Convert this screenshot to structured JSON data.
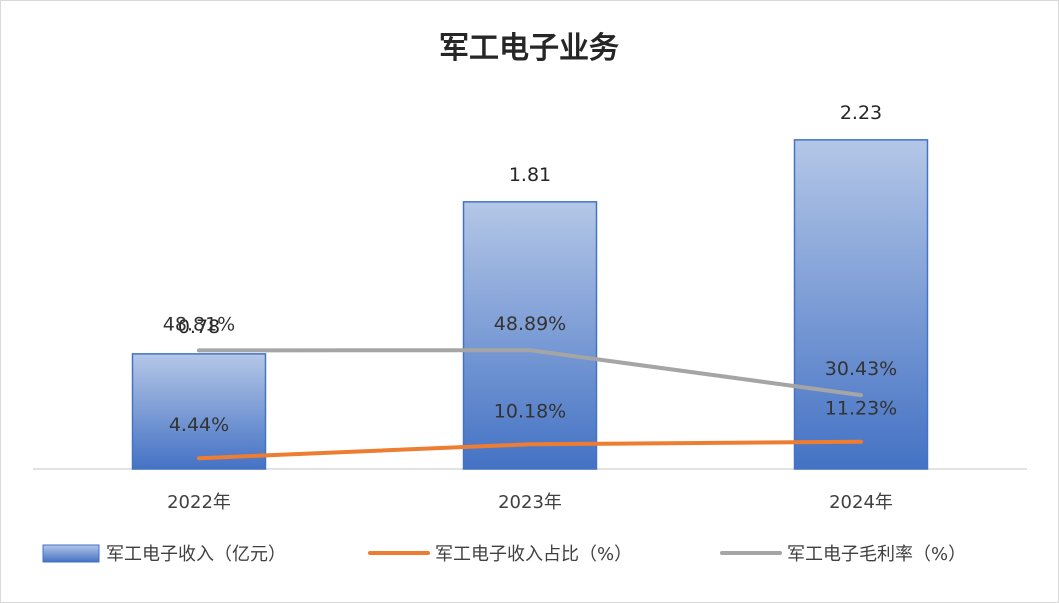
{
  "chart_data": {
    "type": "bar",
    "title": "军工电子业务",
    "categories": [
      "2022年",
      "2023年",
      "2024年"
    ],
    "ylim": [
      0,
      2.5
    ],
    "grid": false,
    "legend_position": "bottom",
    "series": [
      {
        "name": "军工电子收入（亿元）",
        "kind": "bar",
        "values": [
          0.78,
          1.81,
          2.23
        ],
        "labels": [
          "0.78",
          "1.81",
          "2.23"
        ],
        "color_top": "#b4c7e7",
        "color_bottom": "#4472c4",
        "border": "#4472c4"
      },
      {
        "name": "军工电子收入占比（%）",
        "kind": "line",
        "values": [
          4.44,
          10.18,
          11.23
        ],
        "labels": [
          "4.44%",
          "10.18%",
          "11.23%"
        ],
        "color": "#ed7d31"
      },
      {
        "name": "军工电子毛利率（%）",
        "kind": "line",
        "values": [
          48.81,
          48.89,
          30.43
        ],
        "labels": [
          "48.81%",
          "48.89%",
          "30.43%"
        ],
        "color": "#a5a5a5"
      }
    ]
  }
}
